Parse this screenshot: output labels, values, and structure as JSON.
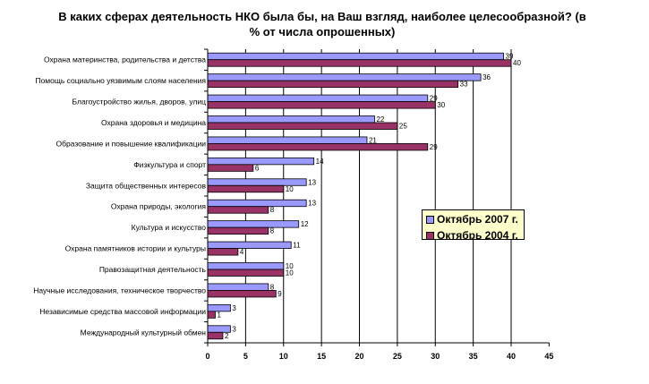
{
  "chart_data": {
    "type": "bar",
    "orientation": "horizontal",
    "title": "В каких сферах деятельность НКО была бы, на Ваш взгляд, наиболее целесообразной? (в % от числа опрошенных)",
    "categories": [
      "Охрана материнства, родительства и детства",
      "Помощь социально уязвимым слоям населения",
      "Благоустройство жилья, дворов, улиц",
      "Охрана здоровья и медицина",
      "Образование и повышение квалификации",
      "Физкультура и спорт",
      "Защита общественных интересов",
      "Охрана природы, экология",
      "Культура и искусство",
      "Охрана памятников истории и культуры",
      "Правозащитная деятельность",
      "Научные исследования, техническое творчество",
      "Независимые средства массовой информации",
      "Международный культурный обмен"
    ],
    "series": [
      {
        "name": "Октябрь 2007 г.",
        "color": "#9999ff",
        "values": [
          39,
          36,
          29,
          22,
          21,
          14,
          13,
          13,
          12,
          11,
          10,
          8,
          3,
          3
        ]
      },
      {
        "name": "Октябрь 2004 г.",
        "color": "#993366",
        "values": [
          40,
          33,
          30,
          25,
          29,
          6,
          10,
          8,
          8,
          4,
          10,
          9,
          1,
          2
        ]
      }
    ],
    "xlim": [
      0,
      45
    ],
    "xticks": [
      0,
      5,
      10,
      15,
      20,
      25,
      30,
      35,
      40,
      45
    ],
    "grid": true,
    "legend_position": "right"
  }
}
